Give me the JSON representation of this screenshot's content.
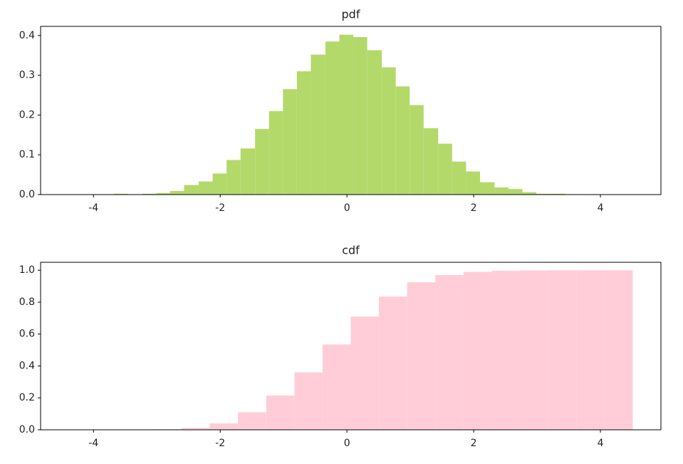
{
  "chart_data": [
    {
      "type": "histogram",
      "title": "pdf",
      "color": "#b3d96b",
      "bins": [
        -3.68,
        -3.46,
        -3.23,
        -3.01,
        -2.79,
        -2.57,
        -2.34,
        -2.12,
        -1.9,
        -1.68,
        -1.45,
        -1.23,
        -1.01,
        -0.79,
        -0.57,
        -0.34,
        -0.12,
        0.1,
        0.32,
        0.55,
        0.77,
        0.99,
        1.21,
        1.44,
        1.66,
        1.88,
        2.1,
        2.33,
        2.55,
        2.77,
        2.99,
        3.22,
        3.44,
        3.66
      ],
      "values": [
        0.002,
        0.0,
        0.002,
        0.004,
        0.009,
        0.024,
        0.033,
        0.053,
        0.087,
        0.116,
        0.165,
        0.21,
        0.265,
        0.31,
        0.352,
        0.385,
        0.402,
        0.396,
        0.363,
        0.32,
        0.272,
        0.225,
        0.167,
        0.128,
        0.083,
        0.058,
        0.031,
        0.018,
        0.014,
        0.006,
        0.002,
        0.002,
        0.001
      ],
      "xlim": [
        -4.835,
        4.955
      ],
      "xticks": [
        -4,
        -2,
        0,
        2,
        4
      ],
      "ylim": [
        0,
        0.423
      ],
      "yticks": [
        {
          "value": 0,
          "label": "0.0"
        },
        0.1,
        0.2,
        0.3,
        0.4
      ]
    },
    {
      "type": "histogram",
      "title": "cdf",
      "color": "#ffcdd8",
      "bins": [
        -4.39,
        -3.945,
        -3.5,
        -3.055,
        -2.61,
        -2.165,
        -1.72,
        -1.275,
        -0.83,
        -0.385,
        0.06,
        0.505,
        0.95,
        1.395,
        1.84,
        2.285,
        2.73,
        3.175,
        3.62,
        4.065,
        4.51
      ],
      "values": [
        0.0001,
        0.0003,
        0.001,
        0.003,
        0.012,
        0.04,
        0.11,
        0.215,
        0.36,
        0.535,
        0.71,
        0.835,
        0.925,
        0.97,
        0.99,
        0.997,
        0.999,
        1.0,
        1.0,
        1.0
      ],
      "xlim": [
        -4.835,
        4.955
      ],
      "xticks": [
        -4,
        -2,
        0,
        2,
        4
      ],
      "ylim": [
        0,
        1.05
      ],
      "yticks": [
        {
          "value": 0,
          "label": "0.0"
        },
        0.2,
        0.4,
        0.6,
        0.8,
        {
          "value": 1,
          "label": "1.0"
        }
      ]
    }
  ]
}
